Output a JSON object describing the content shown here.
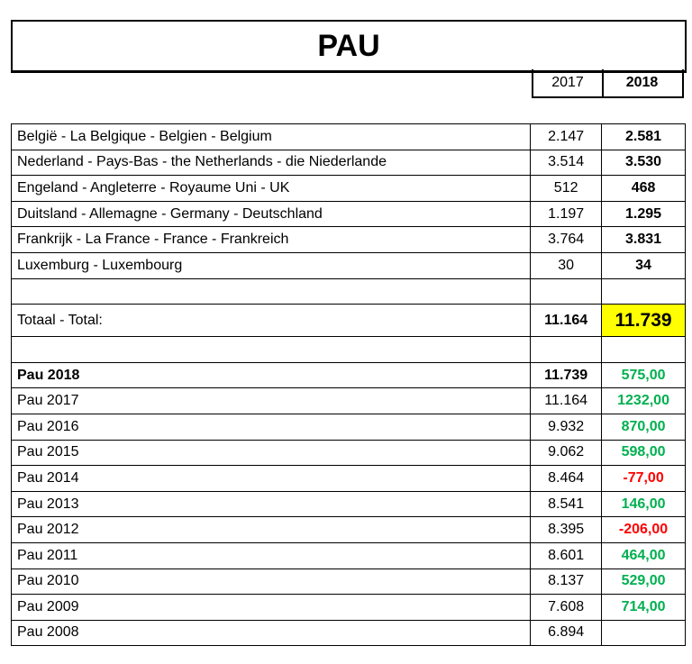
{
  "title": "PAU",
  "headers": {
    "y2017": "2017",
    "y2018": "2018"
  },
  "countries": [
    {
      "label": "België - La Belgique - Belgien - Belgium",
      "v2017": "2.147",
      "v2018": "2.581"
    },
    {
      "label": "Nederland - Pays-Bas - the Netherlands - die Niederlande",
      "v2017": "3.514",
      "v2018": "3.530"
    },
    {
      "label": "Engeland - Angleterre - Royaume Uni - UK",
      "v2017": "512",
      "v2018": "468"
    },
    {
      "label": "Duitsland - Allemagne - Germany - Deutschland",
      "v2017": "1.197",
      "v2018": "1.295"
    },
    {
      "label": "Frankrijk - La France - France - Frankreich",
      "v2017": "3.764",
      "v2018": "3.831"
    },
    {
      "label": "Luxemburg - Luxembourg",
      "v2017": "30",
      "v2018": "34"
    }
  ],
  "total": {
    "label": "Totaal - Total:",
    "v2017": "11.164",
    "v2018": "11.739",
    "highlight": "#ffff00"
  },
  "history": [
    {
      "label": "Pau 2018",
      "value": "11.739",
      "diff": "575,00",
      "sign": "pos"
    },
    {
      "label": "Pau 2017",
      "value": "11.164",
      "diff": "1232,00",
      "sign": "pos"
    },
    {
      "label": "Pau 2016",
      "value": "9.932",
      "diff": "870,00",
      "sign": "pos"
    },
    {
      "label": "Pau 2015",
      "value": "9.062",
      "diff": "598,00",
      "sign": "pos"
    },
    {
      "label": "Pau 2014",
      "value": "8.464",
      "diff": "-77,00",
      "sign": "neg"
    },
    {
      "label": "Pau 2013",
      "value": "8.541",
      "diff": "146,00",
      "sign": "pos"
    },
    {
      "label": "Pau 2012",
      "value": "8.395",
      "diff": "-206,00",
      "sign": "neg"
    },
    {
      "label": "Pau 2011",
      "value": "8.601",
      "diff": "464,00",
      "sign": "pos"
    },
    {
      "label": "Pau 2010",
      "value": "8.137",
      "diff": "529,00",
      "sign": "pos"
    },
    {
      "label": "Pau 2009",
      "value": "7.608",
      "diff": "714,00",
      "sign": "pos"
    },
    {
      "label": "Pau 2008",
      "value": "6.894",
      "diff": "",
      "sign": ""
    }
  ],
  "colors": {
    "positive": "#00b050",
    "negative": "#ff0000"
  }
}
